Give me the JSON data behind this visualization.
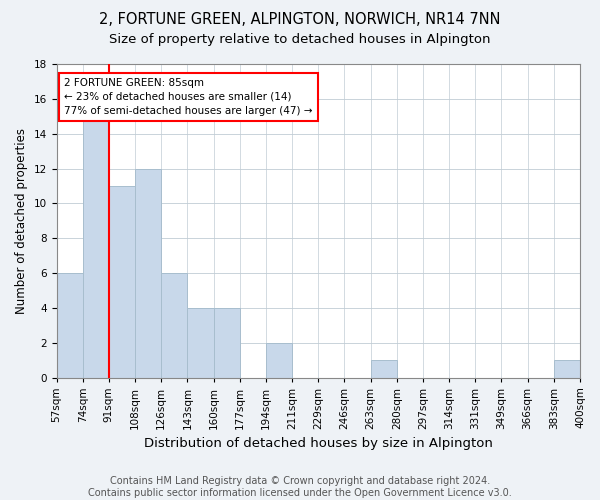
{
  "title": "2, FORTUNE GREEN, ALPINGTON, NORWICH, NR14 7NN",
  "subtitle": "Size of property relative to detached houses in Alpington",
  "xlabel": "Distribution of detached houses by size in Alpington",
  "ylabel": "Number of detached properties",
  "bins": [
    "57sqm",
    "74sqm",
    "91sqm",
    "108sqm",
    "126sqm",
    "143sqm",
    "160sqm",
    "177sqm",
    "194sqm",
    "211sqm",
    "229sqm",
    "246sqm",
    "263sqm",
    "280sqm",
    "297sqm",
    "314sqm",
    "331sqm",
    "349sqm",
    "366sqm",
    "383sqm",
    "400sqm"
  ],
  "values": [
    6,
    15,
    11,
    12,
    6,
    4,
    4,
    0,
    2,
    0,
    0,
    0,
    1,
    0,
    0,
    0,
    0,
    0,
    0,
    1
  ],
  "bar_color": "#c8d8ea",
  "bar_edge_color": "#a8bece",
  "annotation_text": "2 FORTUNE GREEN: 85sqm\n← 23% of detached houses are smaller (14)\n77% of semi-detached houses are larger (47) →",
  "annotation_box_color": "white",
  "annotation_box_edge_color": "red",
  "vline_color": "red",
  "ylim": [
    0,
    18
  ],
  "yticks": [
    0,
    2,
    4,
    6,
    8,
    10,
    12,
    14,
    16,
    18
  ],
  "footnote": "Contains HM Land Registry data © Crown copyright and database right 2024.\nContains public sector information licensed under the Open Government Licence v3.0.",
  "background_color": "#eef2f6",
  "plot_bg_color": "white",
  "title_fontsize": 10.5,
  "subtitle_fontsize": 9.5,
  "xlabel_fontsize": 9.5,
  "ylabel_fontsize": 8.5,
  "tick_fontsize": 7.5,
  "footnote_fontsize": 7,
  "annotation_fontsize": 7.5
}
